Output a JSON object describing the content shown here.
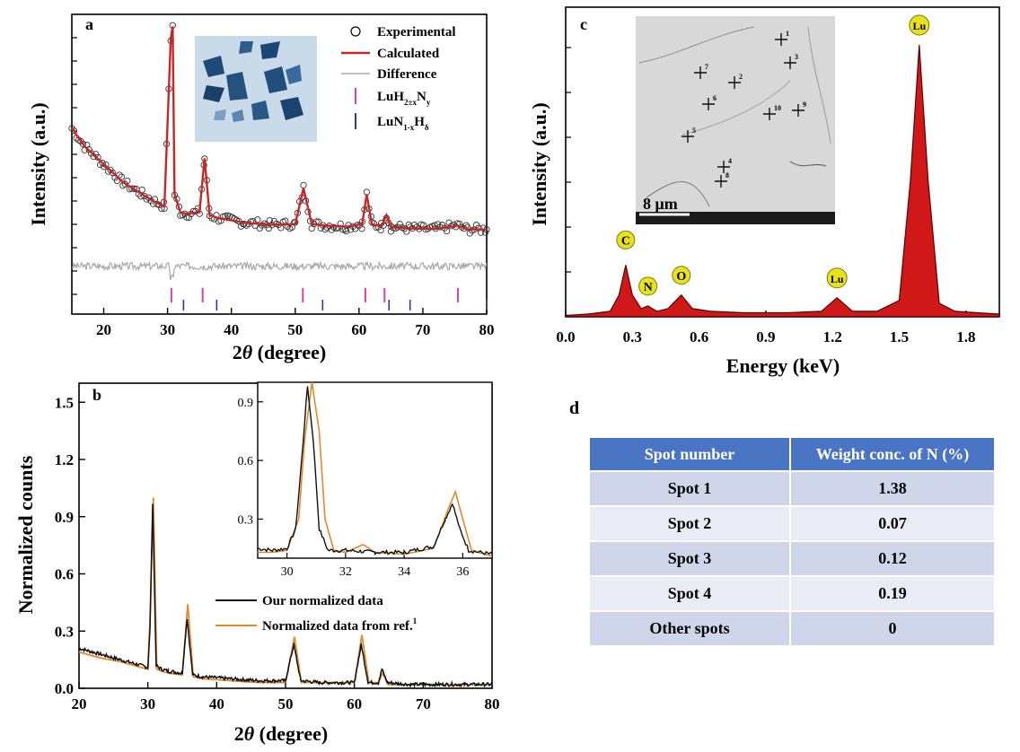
{
  "panels": {
    "a": {
      "label": "a"
    },
    "b": {
      "label": "b"
    },
    "c": {
      "label": "c"
    },
    "d": {
      "label": "d"
    }
  },
  "chart_data": [
    {
      "id": "a",
      "type": "line",
      "title": "",
      "xlabel_italic": "θ",
      "xlabel": "2θ (degree)",
      "ylabel": "Intensity (a.u.)",
      "xlim": [
        15,
        80
      ],
      "ylim": [
        0,
        100
      ],
      "xticks": [
        20,
        30,
        40,
        50,
        60,
        70,
        80
      ],
      "legend": [
        "Experimental",
        "Calculated",
        "Difference",
        "LuH2±xNy",
        "LuN1-xHδ"
      ],
      "legend_position": "top-right",
      "inset_note": "optical micrograph of crystals",
      "series": [
        {
          "name": "Calculated",
          "color": "#c62828",
          "x": [
            15,
            17,
            20,
            23,
            26,
            28,
            29.5,
            30.5,
            30.8,
            31.1,
            32,
            33,
            35,
            35.8,
            36.6,
            38,
            42,
            46,
            50,
            51.3,
            52.6,
            55,
            58,
            60.5,
            61.2,
            62,
            63.5,
            64.3,
            65,
            68,
            72,
            75.4,
            77,
            80
          ],
          "y": [
            62,
            56,
            50,
            44,
            40,
            37.5,
            36,
            92,
            96,
            40,
            34,
            33.5,
            34,
            52,
            33,
            32,
            30.5,
            29.8,
            30,
            42,
            30,
            29.5,
            29.2,
            30,
            40,
            30,
            29.2,
            33,
            29,
            28.6,
            28.4,
            29.5,
            28.3,
            28.2
          ]
        },
        {
          "name": "Difference",
          "color": "#a8a8a8",
          "baseline": 16
        }
      ],
      "reflections": {
        "LuH2±xNy": {
          "color": "#e040a0",
          "positions": [
            30.6,
            35.5,
            51.2,
            61.0,
            64.0,
            75.5
          ]
        },
        "LuN1-xHδ": {
          "color": "#2a3aa0",
          "positions": [
            32.5,
            37.7,
            54.3,
            64.7,
            68.0,
            80.0
          ]
        }
      }
    },
    {
      "id": "b",
      "type": "line",
      "xlabel": "2θ (degree)",
      "ylabel": "Normalized counts",
      "xlim": [
        20,
        80
      ],
      "ylim": [
        0,
        1.6
      ],
      "xticks": [
        20,
        30,
        40,
        50,
        60,
        70,
        80
      ],
      "yticks": [
        0.0,
        0.3,
        0.6,
        0.9,
        1.2,
        1.5
      ],
      "ytick_labels": [
        "0.0",
        "0.3",
        "0.6",
        "0.9",
        "1.2",
        "1.5"
      ],
      "legend": [
        "Our normalized data",
        "Normalized data from ref.1"
      ],
      "legend_position": "lower-right",
      "series": [
        {
          "name": "Our normalized data",
          "color": "#111111",
          "x": [
            20,
            23,
            26,
            28,
            30,
            30.3,
            30.7,
            31.2,
            32,
            33,
            35,
            35.7,
            36.5,
            38,
            42,
            46,
            50,
            51.2,
            52.2,
            55,
            60,
            61,
            62,
            63.5,
            64,
            64.8,
            68,
            72,
            76,
            80
          ],
          "y": [
            0.21,
            0.18,
            0.15,
            0.13,
            0.11,
            0.3,
            0.97,
            0.12,
            0.1,
            0.09,
            0.08,
            0.37,
            0.07,
            0.06,
            0.05,
            0.04,
            0.04,
            0.23,
            0.04,
            0.03,
            0.03,
            0.23,
            0.03,
            0.03,
            0.1,
            0.03,
            0.02,
            0.02,
            0.02,
            0.02
          ]
        },
        {
          "name": "Normalized data from ref.1",
          "color": "#e08a2c",
          "x": [
            20,
            23,
            26,
            28,
            30,
            30.3,
            30.8,
            31.3,
            32,
            33,
            35,
            35.8,
            36.6,
            38,
            42,
            46,
            50,
            51.3,
            52.3,
            55,
            60,
            61.1,
            62.1,
            63.5,
            64.1,
            64.9,
            68,
            72,
            76,
            80
          ],
          "y": [
            0.19,
            0.16,
            0.14,
            0.12,
            0.1,
            0.35,
            1.0,
            0.1,
            0.09,
            0.08,
            0.07,
            0.44,
            0.06,
            0.05,
            0.04,
            0.03,
            0.03,
            0.27,
            0.03,
            0.03,
            0.03,
            0.28,
            0.03,
            0.03,
            0.08,
            0.02,
            0.02,
            0.02,
            0.02,
            0.02
          ]
        }
      ],
      "inset": {
        "xlim": [
          29,
          37
        ],
        "ylim": [
          0.1,
          1.0
        ],
        "xticks": [
          30,
          32,
          34,
          36
        ],
        "yticks": [
          0.3,
          0.6,
          0.9
        ],
        "ytick_labels": [
          "0.3",
          "0.6",
          "0.9"
        ],
        "series": [
          {
            "name": "Our normalized data",
            "color": "#111111",
            "x": [
              29,
              29.5,
              30,
              30.3,
              30.5,
              30.7,
              30.9,
              31.1,
              31.4,
              32,
              33,
              34,
              35,
              35.4,
              35.65,
              35.9,
              36.2,
              37
            ],
            "y": [
              0.15,
              0.14,
              0.15,
              0.25,
              0.6,
              0.98,
              0.7,
              0.25,
              0.14,
              0.14,
              0.13,
              0.13,
              0.16,
              0.3,
              0.38,
              0.25,
              0.14,
              0.12
            ]
          },
          {
            "name": "Normalized data from ref.1",
            "color": "#e08a2c",
            "x": [
              29,
              29.5,
              30,
              30.4,
              30.6,
              30.85,
              31.1,
              31.3,
              31.6,
              32,
              32.6,
              33,
              34,
              35,
              35.5,
              35.75,
              36.0,
              36.3,
              37
            ],
            "y": [
              0.13,
              0.13,
              0.14,
              0.3,
              0.7,
              1.0,
              0.75,
              0.3,
              0.14,
              0.13,
              0.17,
              0.13,
              0.12,
              0.15,
              0.35,
              0.44,
              0.3,
              0.14,
              0.11
            ]
          }
        ]
      }
    },
    {
      "id": "c",
      "type": "area",
      "xlabel": "Energy (keV)",
      "ylabel": "Intensity (a.u.)",
      "xlim": [
        0.0,
        1.95
      ],
      "ylim": [
        0,
        100
      ],
      "xticks": [
        0.0,
        0.3,
        0.6,
        0.9,
        1.2,
        1.5,
        1.8
      ],
      "xtick_labels": [
        "0.0",
        "0.3",
        "0.6",
        "0.9",
        "1.2",
        "1.5",
        "1.8"
      ],
      "fill_color": "#d01818",
      "x": [
        0.0,
        0.1,
        0.2,
        0.24,
        0.27,
        0.3,
        0.34,
        0.37,
        0.41,
        0.46,
        0.52,
        0.57,
        0.65,
        0.8,
        1.0,
        1.15,
        1.22,
        1.29,
        1.4,
        1.5,
        1.55,
        1.59,
        1.63,
        1.68,
        1.75,
        1.85,
        1.95
      ],
      "y": [
        0.5,
        1,
        2,
        8,
        19,
        8,
        3,
        4,
        2,
        3,
        8,
        3,
        2,
        1.5,
        1.5,
        2,
        7,
        2,
        2,
        6,
        50,
        100,
        50,
        5,
        2,
        1.5,
        1
      ],
      "peak_labels": [
        {
          "label": "C",
          "energy": 0.27
        },
        {
          "label": "N",
          "energy": 0.37
        },
        {
          "label": "O",
          "energy": 0.52
        },
        {
          "label": "Lu",
          "energy": 1.22
        },
        {
          "label": "Lu",
          "energy": 1.59
        }
      ],
      "inset": {
        "description": "SEM image",
        "scale_bar": "8 μm",
        "spot_labels": [
          "1",
          "2",
          "3",
          "4",
          "5",
          "6",
          "7",
          "8",
          "9",
          "10"
        ]
      }
    }
  ],
  "table": {
    "headers": [
      "Spot number",
      "Weight conc. of N (%)"
    ],
    "rows": [
      [
        "Spot 1",
        "1.38"
      ],
      [
        "Spot 2",
        "0.07"
      ],
      [
        "Spot 3",
        "0.12"
      ],
      [
        "Spot 4",
        "0.19"
      ],
      [
        "Other spots",
        "0"
      ]
    ]
  }
}
